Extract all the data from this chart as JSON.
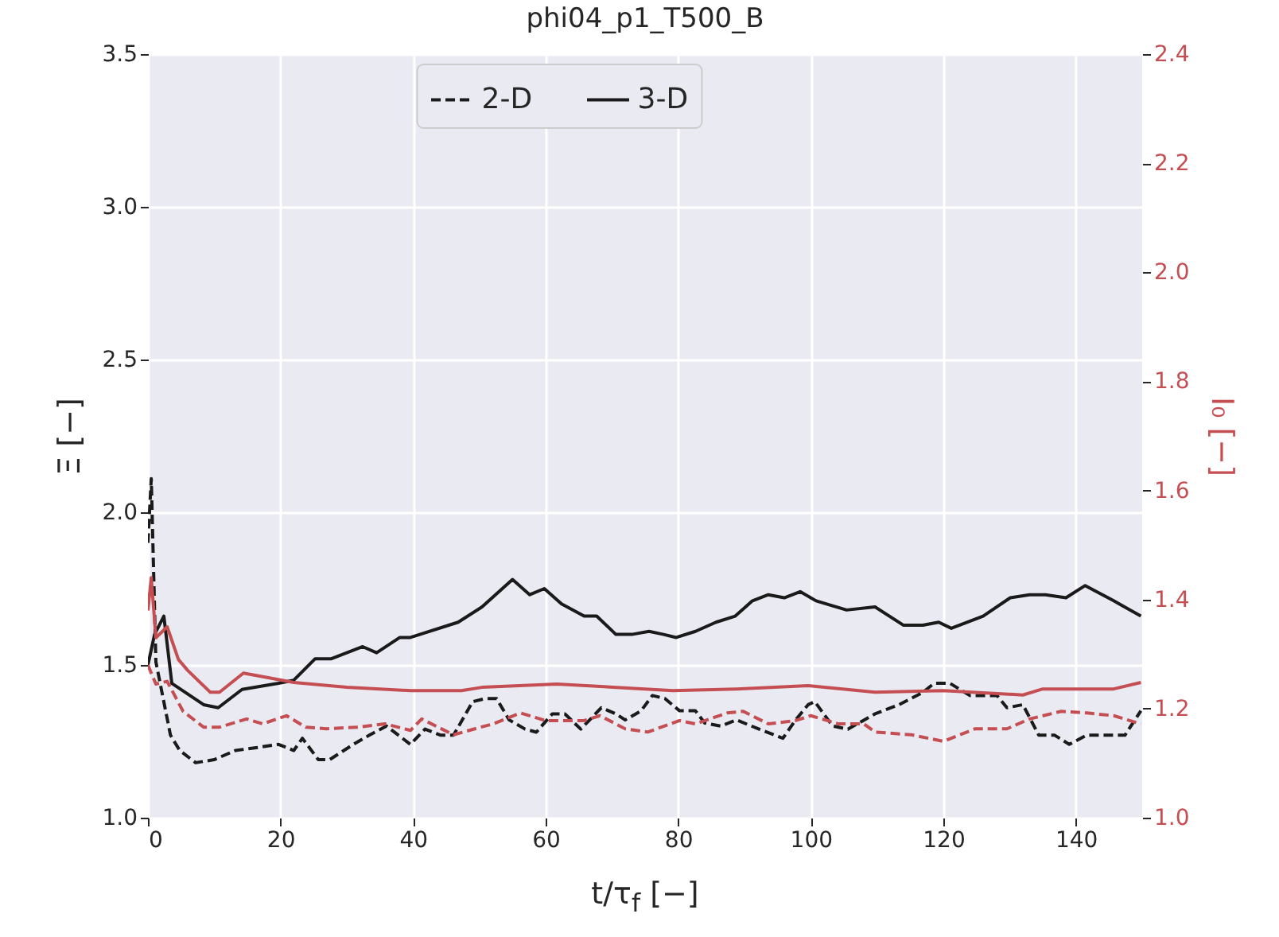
{
  "chart_data": {
    "type": "line",
    "title": "phi04_p1_T500_B",
    "xlabel": "t/τ$_{f}$ [−]",
    "ylabel": "Ξ [−]",
    "y2label": "I₀ [−]",
    "xlim": [
      0,
      150
    ],
    "xticks": [
      0,
      20,
      40,
      60,
      80,
      100,
      120,
      140
    ],
    "ylim": [
      1,
      3.5
    ],
    "yticks": [
      {
        "value": 1,
        "label": "1.0"
      },
      {
        "value": 1.5,
        "label": "1.5"
      },
      {
        "value": 2,
        "label": "2.0"
      },
      {
        "value": 2.5,
        "label": "2.5"
      },
      {
        "value": 3,
        "label": "3.0"
      },
      {
        "value": 3.5,
        "label": "3.5"
      }
    ],
    "y2lim": [
      1,
      2.4
    ],
    "y2ticks": [
      {
        "value": 1,
        "label": "1.0"
      },
      {
        "value": 1.2,
        "label": "1.2"
      },
      {
        "value": 1.4,
        "label": "1.4"
      },
      {
        "value": 1.6,
        "label": "1.6"
      },
      {
        "value": 1.8,
        "label": "1.8"
      },
      {
        "value": 2,
        "label": "2.0"
      },
      {
        "value": 2.2,
        "label": "2.2"
      },
      {
        "value": 2.4,
        "label": "2.4"
      }
    ],
    "grid": true,
    "legend": "top",
    "marker": "none",
    "series": [
      {
        "name": "2-D",
        "color": "#1a1a1a",
        "line_style": "dashed",
        "x": [
          0,
          0.5,
          1.2,
          3.4,
          4.8,
          7.2,
          10,
          13.2,
          16.6,
          19.7,
          22,
          23.3,
          25.7,
          27.4,
          31,
          33.4,
          36,
          39.6,
          41.8,
          44.2,
          46.1,
          49,
          50.9,
          52.6,
          54.5,
          56.9,
          58.6,
          61,
          62.9,
          65.3,
          68.4,
          70.6,
          72,
          74.4,
          76.1,
          78,
          80.2,
          82.6,
          84,
          86.4,
          88.8,
          92.2,
          95.8,
          97.7,
          99.6,
          100.6,
          103.3,
          105.6,
          109.7,
          113.3,
          116.9,
          118.6,
          121,
          124,
          128.1,
          129.6,
          132,
          134.4,
          136.8,
          139,
          141.6,
          145,
          147.4,
          149.8
        ],
        "values": [
          1.9,
          2.11,
          1.51,
          1.27,
          1.22,
          1.18,
          1.19,
          1.22,
          1.23,
          1.24,
          1.22,
          1.26,
          1.19,
          1.19,
          1.24,
          1.27,
          1.3,
          1.24,
          1.29,
          1.27,
          1.27,
          1.38,
          1.39,
          1.39,
          1.32,
          1.29,
          1.28,
          1.34,
          1.34,
          1.29,
          1.36,
          1.34,
          1.32,
          1.35,
          1.4,
          1.39,
          1.35,
          1.35,
          1.31,
          1.3,
          1.32,
          1.29,
          1.26,
          1.32,
          1.37,
          1.38,
          1.3,
          1.29,
          1.34,
          1.37,
          1.41,
          1.44,
          1.44,
          1.4,
          1.4,
          1.36,
          1.37,
          1.27,
          1.27,
          1.24,
          1.27,
          1.27,
          1.27,
          1.35
        ]
      },
      {
        "name": "3-D",
        "color": "#1a1a1a",
        "line_style": "solid",
        "x": [
          0,
          1,
          2.4,
          3.6,
          8.4,
          10.6,
          14.2,
          19.7,
          22,
          25.2,
          27.6,
          32.4,
          34.5,
          38,
          39.6,
          46.8,
          50.4,
          55,
          57.6,
          59.8,
          62.4,
          65.8,
          67.7,
          70.6,
          73,
          75.6,
          77.8,
          79.7,
          82.6,
          85.7,
          88.6,
          91.2,
          93.6,
          96,
          98.4,
          100.8,
          105.4,
          109.7,
          114,
          116.9,
          119.3,
          121.2,
          126,
          130.1,
          133,
          135.4,
          138.5,
          141.4,
          145.7,
          149.8
        ],
        "values": [
          1.5,
          1.6,
          1.66,
          1.44,
          1.37,
          1.36,
          1.42,
          1.44,
          1.45,
          1.52,
          1.52,
          1.56,
          1.54,
          1.59,
          1.59,
          1.64,
          1.69,
          1.78,
          1.73,
          1.75,
          1.7,
          1.66,
          1.66,
          1.6,
          1.6,
          1.61,
          1.6,
          1.59,
          1.61,
          1.64,
          1.66,
          1.71,
          1.73,
          1.72,
          1.74,
          1.71,
          1.68,
          1.69,
          1.63,
          1.63,
          1.64,
          1.62,
          1.66,
          1.72,
          1.73,
          1.73,
          1.72,
          1.76,
          1.71,
          1.66
        ]
      },
      {
        "color": "#c44e52",
        "line_style": "dashed",
        "axis": "y2",
        "x": [
          0,
          0.5,
          1.2,
          2.9,
          5.3,
          8.4,
          10.8,
          14.9,
          17.3,
          20.9,
          23.8,
          26.9,
          31.7,
          35.8,
          39.6,
          41.3,
          46.1,
          50.2,
          52.1,
          56.2,
          60,
          65.8,
          68.2,
          72,
          75.4,
          80.2,
          82.6,
          87.4,
          89.8,
          93.6,
          97.7,
          100,
          104.2,
          108,
          109.7,
          115.2,
          120,
          124.8,
          129.6,
          133,
          137.8,
          141.6,
          145.7,
          149.8
        ],
        "values": [
          1.28,
          1.265,
          1.245,
          1.25,
          1.195,
          1.166,
          1.166,
          1.181,
          1.172,
          1.187,
          1.166,
          1.163,
          1.166,
          1.172,
          1.16,
          1.181,
          1.152,
          1.166,
          1.172,
          1.192,
          1.178,
          1.178,
          1.187,
          1.163,
          1.157,
          1.178,
          1.172,
          1.192,
          1.195,
          1.172,
          1.178,
          1.187,
          1.172,
          1.172,
          1.157,
          1.152,
          1.14,
          1.163,
          1.163,
          1.181,
          1.195,
          1.192,
          1.187,
          1.172
        ]
      },
      {
        "color": "#c44e52",
        "line_style": "solid",
        "axis": "y2",
        "x": [
          0,
          0.5,
          1.2,
          2.9,
          4.6,
          6,
          9.4,
          10.8,
          14.4,
          18,
          22,
          30,
          39.6,
          47.3,
          50.4,
          61.7,
          79.2,
          88.8,
          99.6,
          109.7,
          120,
          132,
          135,
          145.7,
          149.8
        ],
        "values": [
          1.38,
          1.44,
          1.33,
          1.35,
          1.29,
          1.27,
          1.23,
          1.23,
          1.265,
          1.257,
          1.248,
          1.239,
          1.233,
          1.233,
          1.239,
          1.245,
          1.233,
          1.236,
          1.242,
          1.23,
          1.233,
          1.225,
          1.236,
          1.236,
          1.248
        ]
      }
    ]
  }
}
